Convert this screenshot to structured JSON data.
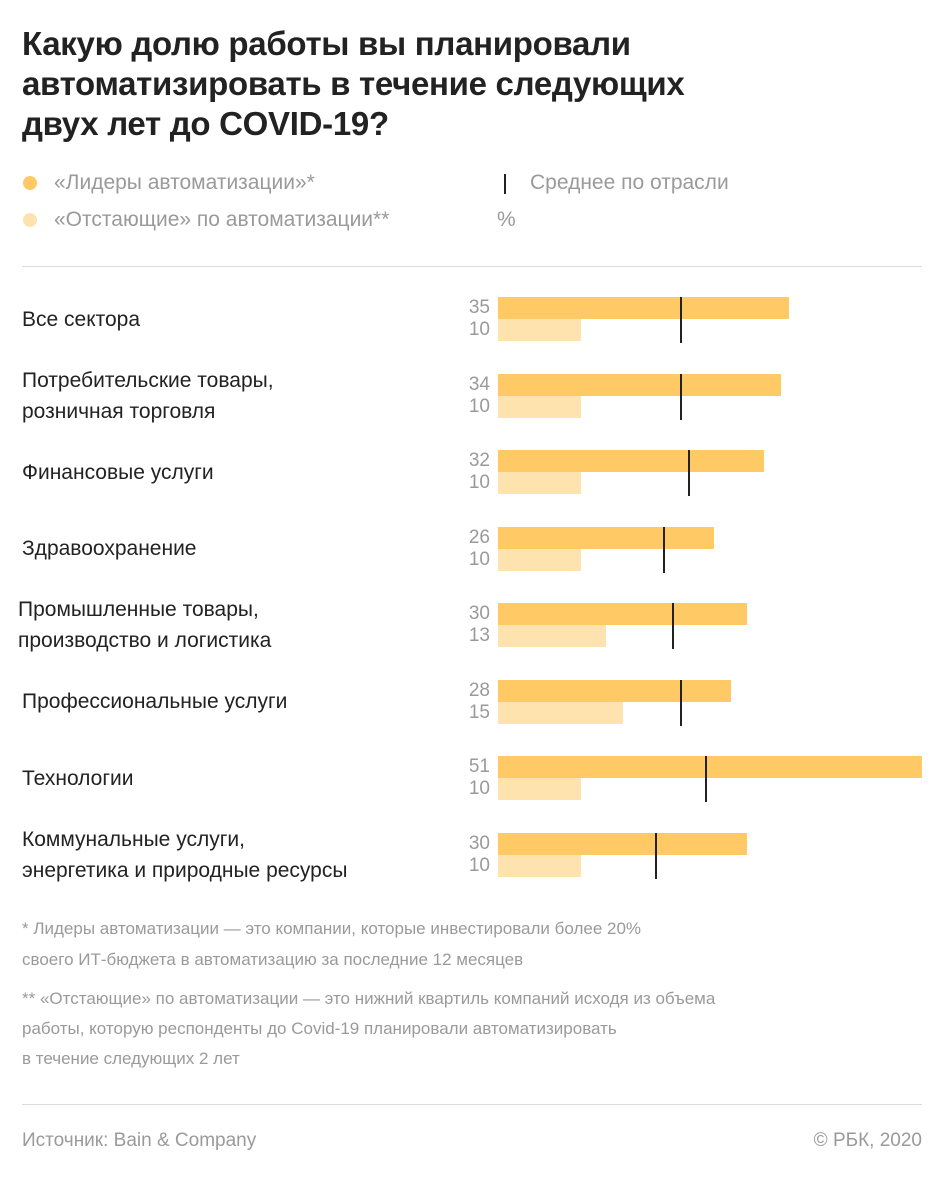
{
  "title_lines": [
    "Какую долю работы вы планировали",
    "автоматизировать в течение следующих",
    "двух лет до COVID-19?"
  ],
  "legend": {
    "leaders": "«Лидеры автоматизации»*",
    "laggards": "«Отстающие» по автоматизации**",
    "average": "Среднее по отрасли",
    "unit": "%"
  },
  "colors": {
    "leaders": "#FFC966",
    "laggards": "#FFE3AE",
    "average_tick": "#222222"
  },
  "chart_data": {
    "type": "bar",
    "orientation": "horizontal",
    "unit": "%",
    "categories": [
      [
        "Все сектора"
      ],
      [
        "Потребительские товары,",
        "розничная торговля"
      ],
      [
        "Финансовые услуги"
      ],
      [
        "Здравоохранение"
      ],
      [
        "Промышленные товары,",
        "производство и логистика"
      ],
      [
        "Профессиональные услуги"
      ],
      [
        "Технологии"
      ],
      [
        "Коммунальные услуги,",
        "энергетика и природные ресурсы"
      ]
    ],
    "series": [
      {
        "name": "«Лидеры автоматизации»*",
        "values": [
          35,
          34,
          32,
          26,
          30,
          28,
          51,
          30
        ]
      },
      {
        "name": "«Отстающие» по автоматизации**",
        "values": [
          10,
          10,
          10,
          10,
          13,
          15,
          10,
          10
        ]
      }
    ],
    "industry_average": [
      22,
      22,
      23,
      20,
      21,
      22,
      25,
      19
    ],
    "xlim": [
      0,
      51
    ]
  },
  "footnotes": [
    "* Лидеры автоматизации — это компании, которые инвестировали более 20%",
    "своего ИТ-бюджета в автоматизацию за последние 12 месяцев",
    "** «Отстающие» по автоматизации — это нижний квартиль компаний исходя из объема",
    "работы, которую респонденты до Covid-19 планировали автоматизировать",
    "в течение следующих 2 лет"
  ],
  "source": "Источник: Bain & Company",
  "copyright": "© РБК, 2020"
}
